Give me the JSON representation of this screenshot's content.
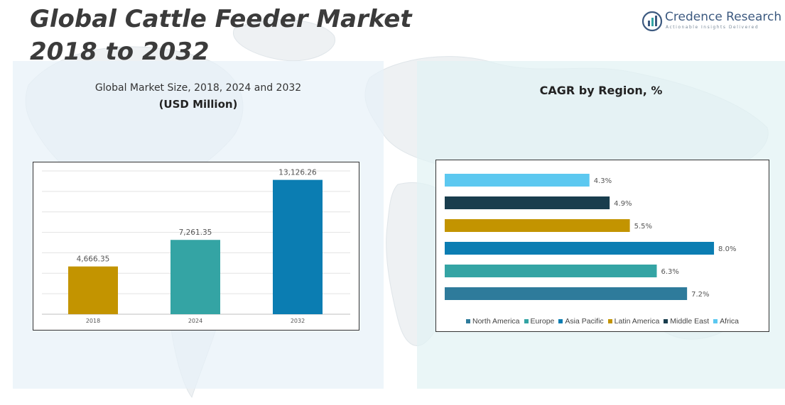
{
  "header": {
    "title_line1": "Global Cattle Feeder Market",
    "title_line2": "2018 to 2032"
  },
  "brand": {
    "name": "Credence Research",
    "tagline": "Actionable Insights Delivered",
    "icon": "bar-chart-logo-icon",
    "color": "#3d5a80"
  },
  "left_panel": {
    "subtitle": "Global Market Size, 2018, 2024 and 2032",
    "unit": "(USD Million)"
  },
  "right_panel": {
    "title": "CAGR by Region, %"
  },
  "chart_data": [
    {
      "type": "bar",
      "orientation": "vertical",
      "categories": [
        "2018",
        "2024",
        "2032"
      ],
      "values": [
        4666.35,
        7261.35,
        13126.26
      ],
      "labels": [
        "4,666.35",
        "7,261.35",
        "13,126.26"
      ],
      "colors": [
        "#c39400",
        "#34a4a4",
        "#0b7db2"
      ],
      "ylim": [
        0,
        14000
      ],
      "grid": true
    },
    {
      "type": "bar",
      "orientation": "horizontal",
      "categories": [
        "Africa",
        "Middle East",
        "Latin America",
        "Asia Pacific",
        "Europe",
        "North America"
      ],
      "values": [
        4.3,
        4.9,
        5.5,
        8.0,
        6.3,
        7.2
      ],
      "labels": [
        "4.3%",
        "4.9%",
        "5.5%",
        "8.0%",
        "6.3%",
        "7.2%"
      ],
      "colors": [
        "#5cc8f0",
        "#193d4d",
        "#c39400",
        "#0b7db2",
        "#34a4a4",
        "#2e7b9b"
      ],
      "xlim": [
        0,
        8.4
      ],
      "legend": [
        {
          "name": "North America",
          "color": "#2e7b9b"
        },
        {
          "name": "Europe",
          "color": "#34a4a4"
        },
        {
          "name": "Asia Pacific",
          "color": "#0b7db2"
        },
        {
          "name": "Latin America",
          "color": "#c39400"
        },
        {
          "name": "Middle East",
          "color": "#193d4d"
        },
        {
          "name": "Africa",
          "color": "#5cc8f0"
        }
      ],
      "legend_position": "bottom"
    }
  ]
}
